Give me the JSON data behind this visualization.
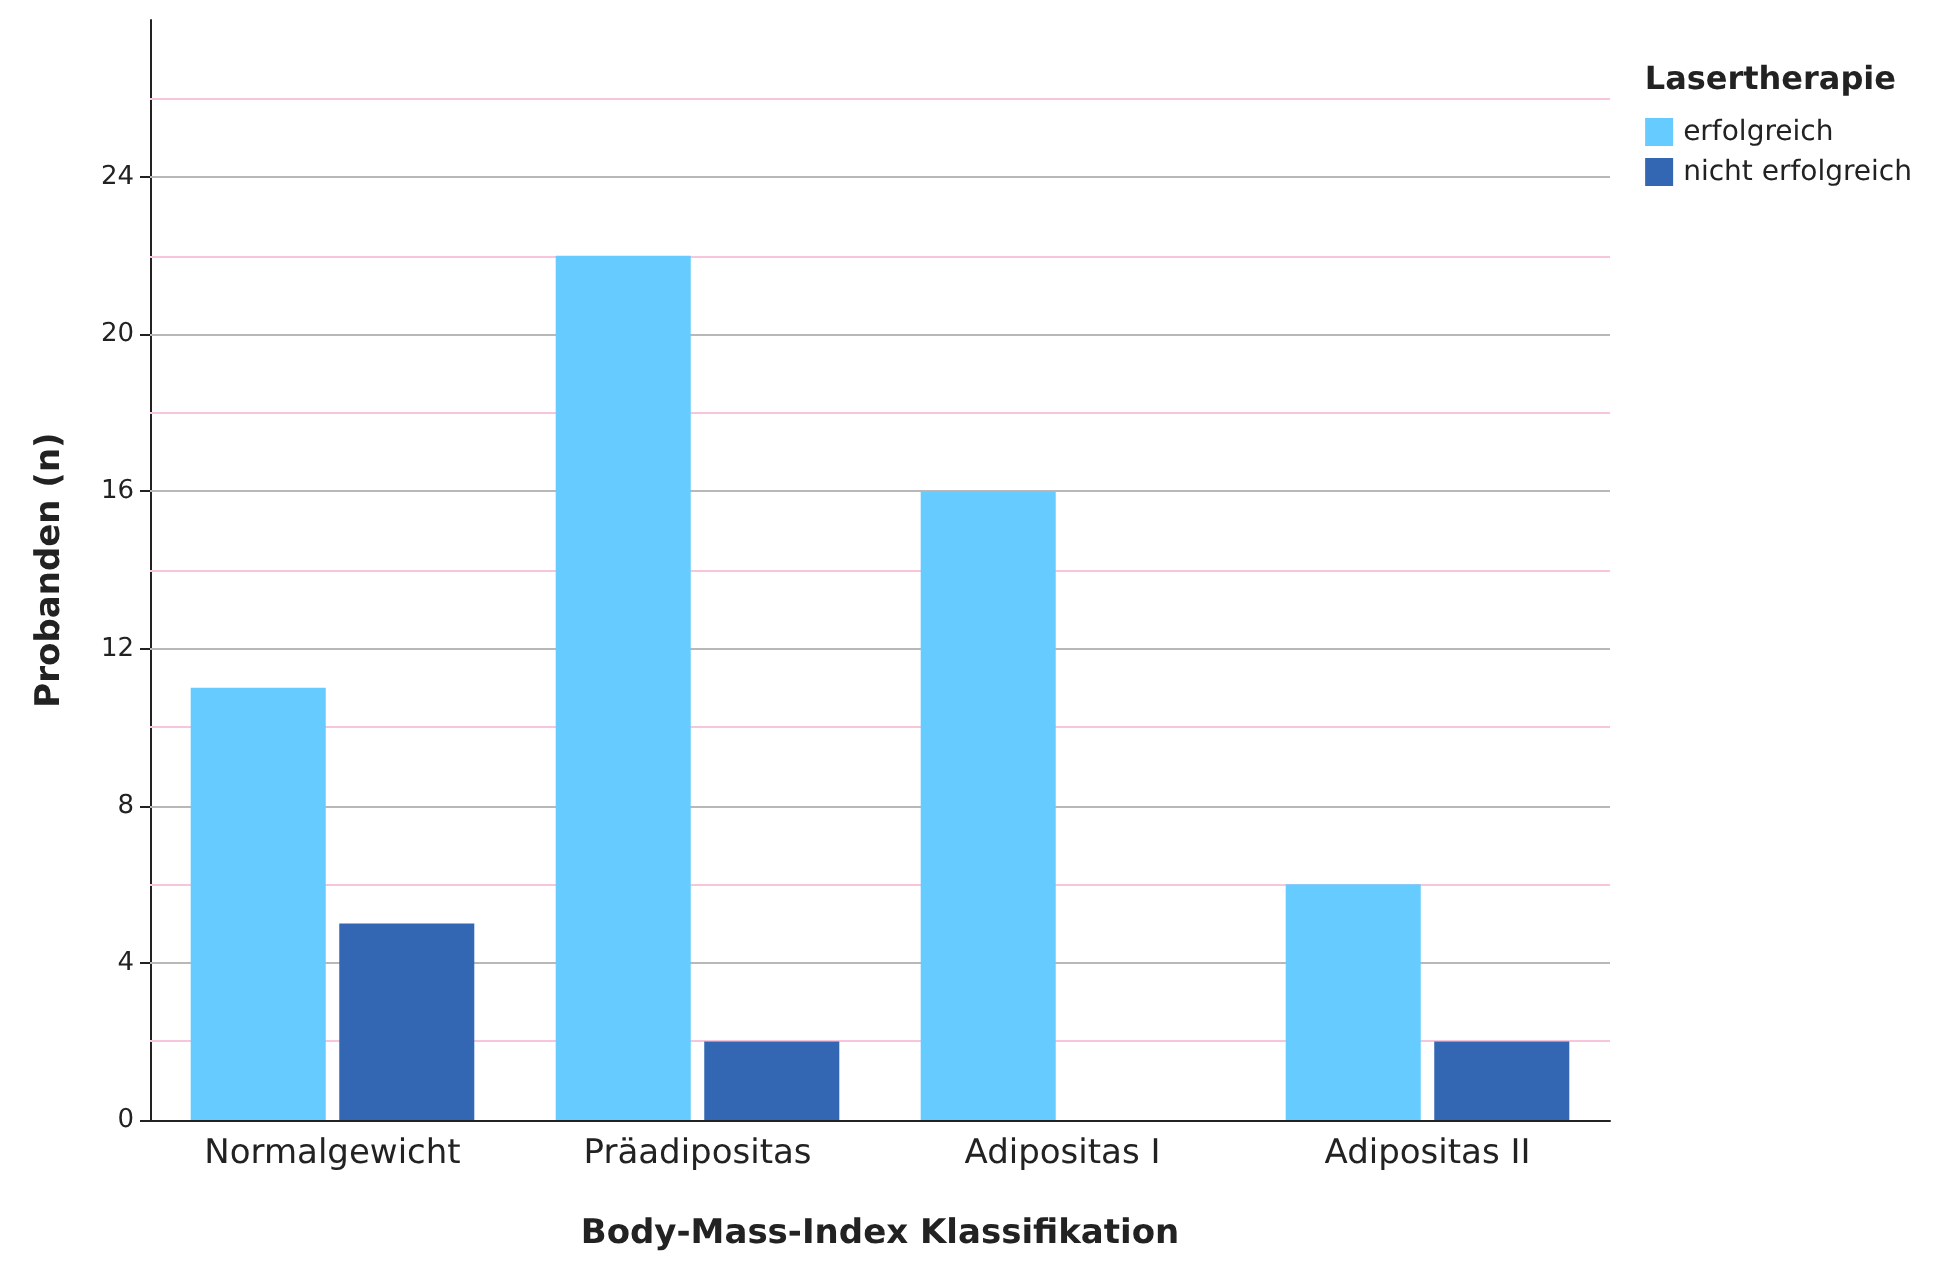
{
  "chart_data": {
    "type": "bar",
    "xlabel": "Body-Mass-Index Klassifikation",
    "ylabel": "Probanden (n)",
    "legend_title": "Lasertherapie",
    "categories": [
      "Normalgewicht",
      "Präadipositas",
      "Adipositas I",
      "Adipositas II"
    ],
    "series": [
      {
        "name": "erfolgreich",
        "color": "#66ccff",
        "values": [
          11,
          22,
          16,
          6
        ]
      },
      {
        "name": "nicht erfolgreich",
        "color": "#3366b3",
        "values": [
          5,
          2,
          0,
          2
        ]
      }
    ],
    "ylim": [
      0,
      28
    ],
    "yticks": [
      0,
      {
        "value": 2,
        "label": null
      },
      4,
      {
        "value": 6,
        "label": null
      },
      8,
      {
        "value": 10,
        "label": null
      },
      12,
      {
        "value": 14,
        "label": null
      },
      16,
      {
        "value": 18,
        "label": null
      },
      20,
      {
        "value": 22,
        "label": null
      },
      24,
      {
        "value": 26,
        "label": null
      }
    ],
    "grid": "y",
    "legend": "top right"
  }
}
